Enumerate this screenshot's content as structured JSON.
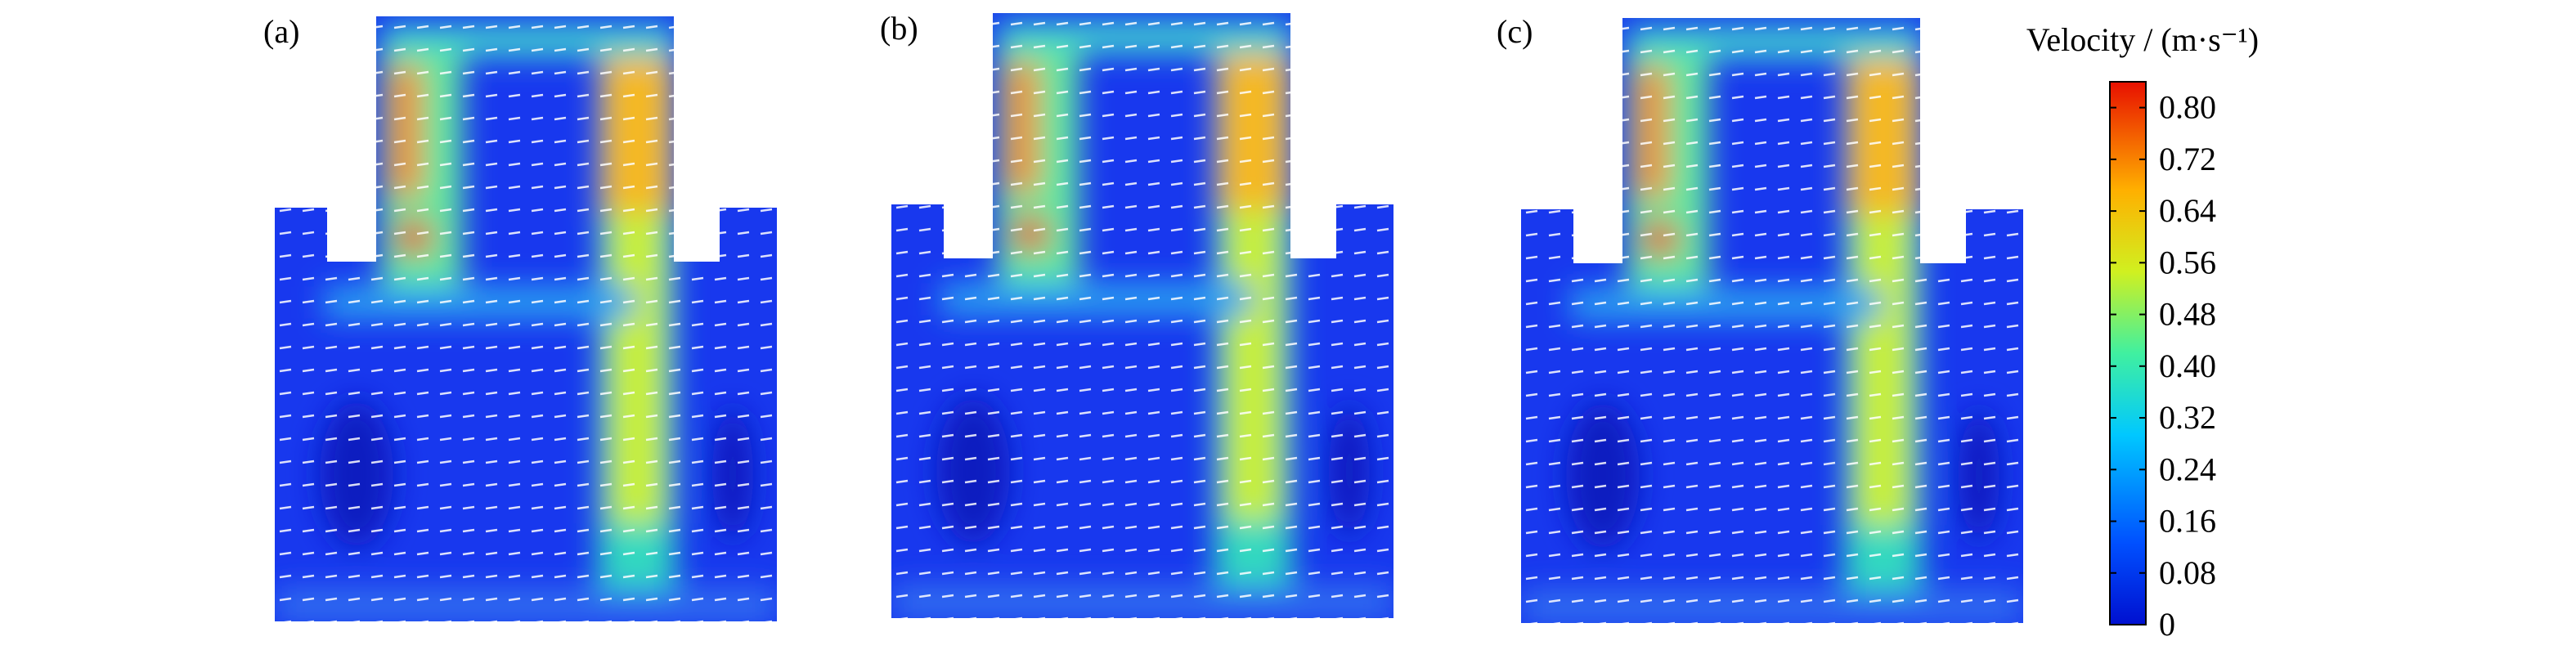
{
  "panels": [
    {
      "label": "(a)"
    },
    {
      "label": "(b)"
    },
    {
      "label": "(c)"
    }
  ],
  "colorbar": {
    "title": "Velocity / (m·s⁻¹)",
    "range": [
      0,
      0.84
    ],
    "ticks": [
      0,
      {
        "value": 0.08,
        "label": "0.08"
      },
      {
        "value": 0.16,
        "label": "0.16"
      },
      {
        "value": 0.24,
        "label": "0.24"
      },
      {
        "value": 0.32,
        "label": "0.32"
      },
      {
        "value": 0.4,
        "label": "0.40"
      },
      {
        "value": 0.48,
        "label": "0.48"
      },
      {
        "value": 0.56,
        "label": "0.56"
      },
      {
        "value": 0.64,
        "label": "0.64"
      },
      {
        "value": 0.72,
        "label": "0.72"
      },
      {
        "value": 0.8,
        "label": "0.80"
      }
    ]
  }
}
